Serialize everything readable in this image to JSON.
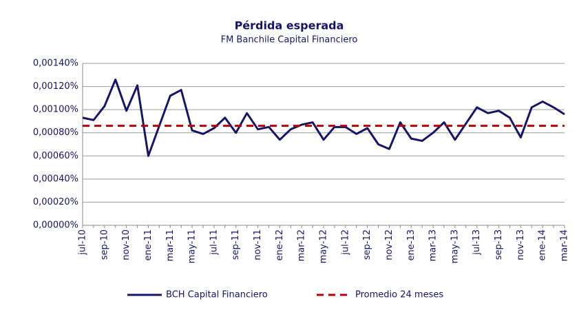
{
  "chart_data": {
    "type": "line",
    "title": "Pérdida esperada",
    "subtitle": "FM Banchile Capital Financiero",
    "categories": [
      "jul-10",
      null,
      "sep-10",
      null,
      "nov-10",
      null,
      "ene-11",
      null,
      "mar-11",
      null,
      "may-11",
      null,
      "jul-11",
      null,
      "sep-11",
      null,
      "nov-11",
      null,
      "ene-12",
      null,
      "mar-12",
      null,
      "may-12",
      null,
      "jul-12",
      null,
      "sep-12",
      null,
      "nov-12",
      null,
      "ene-13",
      null,
      "mar-13",
      null,
      "may-13",
      null,
      "jul-13",
      null,
      "sep-13",
      null,
      "nov-13",
      null,
      "ene-14",
      null,
      "mar-14"
    ],
    "series": [
      {
        "name": "BCH Capital Financiero",
        "color": "#14146b",
        "dashed": false,
        "values": [
          0.00093,
          0.00091,
          0.00103,
          0.00126,
          0.00099,
          0.00121,
          0.0006,
          0.00086,
          0.00112,
          0.00117,
          0.00082,
          0.00079,
          0.00084,
          0.00093,
          0.0008,
          0.00097,
          0.00083,
          0.00085,
          0.00074,
          0.00083,
          0.00087,
          0.00089,
          0.00074,
          0.00085,
          0.00085,
          0.00079,
          0.00084,
          0.0007,
          0.00066,
          0.00089,
          0.00075,
          0.00073,
          0.0008,
          0.00089,
          0.00074,
          0.00088,
          0.00102,
          0.00097,
          0.00099,
          0.00093,
          0.00076,
          0.00102,
          0.00107,
          0.00102,
          0.00096
        ]
      },
      {
        "name": "Promedio 24 meses",
        "color": "#c00000",
        "dashed": true,
        "values": [
          0.00086,
          0.00086,
          0.00086,
          0.00086,
          0.00086,
          0.00086,
          0.00086,
          0.00086,
          0.00086,
          0.00086,
          0.00086,
          0.00086,
          0.00086,
          0.00086,
          0.00086,
          0.00086,
          0.00086,
          0.00086,
          0.00086,
          0.00086,
          0.00086,
          0.00086,
          0.00086,
          0.00086,
          0.00086,
          0.00086,
          0.00086,
          0.00086,
          0.00086,
          0.00086,
          0.00086,
          0.00086,
          0.00086,
          0.00086,
          0.00086,
          0.00086,
          0.00086,
          0.00086,
          0.00086,
          0.00086,
          0.00086,
          0.00086,
          0.00086,
          0.00086,
          0.00086
        ]
      }
    ],
    "ylim": [
      0,
      0.0014
    ],
    "yticks": [
      {
        "value": 0,
        "label": "0,00000%"
      },
      {
        "value": 0.0002,
        "label": "0,00020%"
      },
      {
        "value": 0.0004,
        "label": "0,00040%"
      },
      {
        "value": 0.0006,
        "label": "0,00060%"
      },
      {
        "value": 0.0008,
        "label": "0,00080%"
      },
      {
        "value": 0.001,
        "label": "0,00100%"
      },
      {
        "value": 0.0012,
        "label": "0,00120%"
      },
      {
        "value": 0.0014,
        "label": "0,00140%"
      }
    ],
    "grid": true,
    "legend": "bottom"
  }
}
